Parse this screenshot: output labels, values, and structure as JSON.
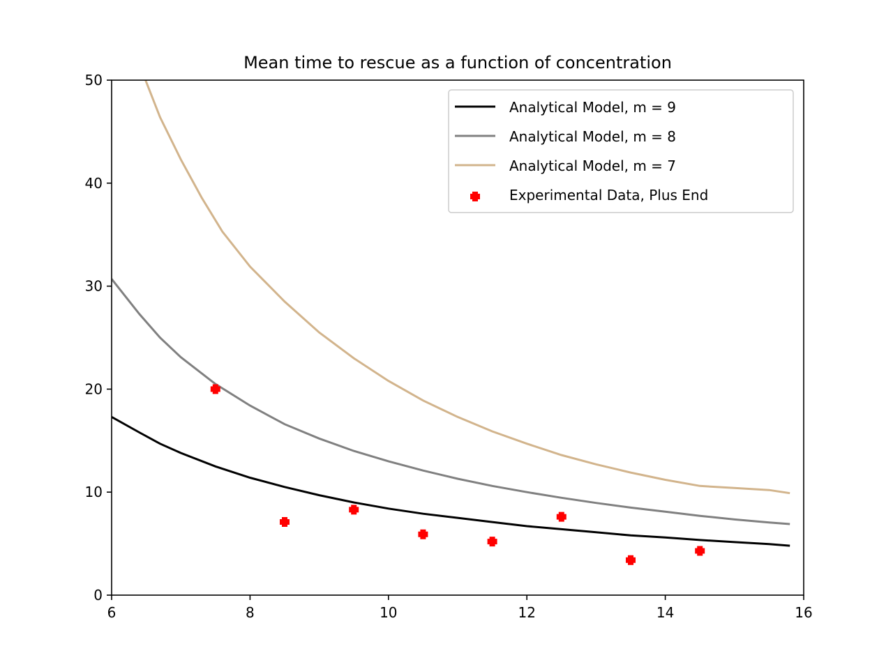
{
  "chart_data": {
    "type": "line",
    "title": "Mean time to rescue as a function of concentration",
    "xlabel": "",
    "ylabel": "",
    "xlim": [
      6,
      16
    ],
    "ylim": [
      0,
      50
    ],
    "xticks": [
      "6",
      "8",
      "10",
      "12",
      "14",
      "16"
    ],
    "yticks": [
      "0",
      "10",
      "20",
      "30",
      "40",
      "50"
    ],
    "grid": false,
    "legend_position": "top-right",
    "series": [
      {
        "name": "Analytical Model, m = 9",
        "kind": "line",
        "color": "#000000",
        "x": [
          6.0,
          6.4,
          6.7,
          7.0,
          7.5,
          8.0,
          8.5,
          9.0,
          9.5,
          10.0,
          10.5,
          11.0,
          11.5,
          12.0,
          12.5,
          13.0,
          13.5,
          14.0,
          14.5,
          15.0,
          15.5,
          15.8
        ],
        "y": [
          17.3,
          15.8,
          14.7,
          13.8,
          12.5,
          11.4,
          10.5,
          9.7,
          9.0,
          8.4,
          7.9,
          7.5,
          7.1,
          6.7,
          6.4,
          6.1,
          5.8,
          5.6,
          5.35,
          5.15,
          4.95,
          4.8
        ]
      },
      {
        "name": "Analytical Model, m = 8",
        "kind": "line",
        "color": "#808080",
        "x": [
          6.0,
          6.4,
          6.7,
          7.0,
          7.5,
          8.0,
          8.5,
          9.0,
          9.5,
          10.0,
          10.5,
          11.0,
          11.5,
          12.0,
          12.5,
          13.0,
          13.5,
          14.0,
          14.5,
          15.0,
          15.5,
          15.8
        ],
        "y": [
          30.7,
          27.3,
          25.0,
          23.1,
          20.5,
          18.4,
          16.6,
          15.2,
          14.0,
          13.0,
          12.1,
          11.3,
          10.6,
          10.0,
          9.45,
          8.95,
          8.5,
          8.1,
          7.7,
          7.35,
          7.05,
          6.9
        ]
      },
      {
        "name": "Analytical Model, m = 7",
        "kind": "line",
        "color": "#d2b48c",
        "x": [
          6.49,
          6.7,
          7.0,
          7.3,
          7.6,
          8.0,
          8.5,
          9.0,
          9.5,
          10.0,
          10.5,
          11.0,
          11.5,
          12.0,
          12.5,
          13.0,
          13.5,
          14.0,
          14.5,
          15.0,
          15.5,
          15.8
        ],
        "y": [
          50.0,
          46.4,
          42.3,
          38.6,
          35.3,
          31.9,
          28.5,
          25.5,
          23.0,
          20.8,
          18.9,
          17.3,
          15.9,
          14.7,
          13.6,
          12.7,
          11.9,
          11.2,
          10.6,
          10.4,
          10.2,
          9.9
        ]
      },
      {
        "name": "Experimental Data, Plus End",
        "kind": "scatter",
        "marker": "plus",
        "color": "#ff0000",
        "x": [
          7.5,
          8.5,
          9.5,
          10.5,
          11.5,
          12.5,
          13.5,
          14.5
        ],
        "y": [
          20.0,
          7.1,
          8.3,
          5.9,
          5.2,
          7.6,
          3.4,
          4.3
        ]
      }
    ]
  }
}
